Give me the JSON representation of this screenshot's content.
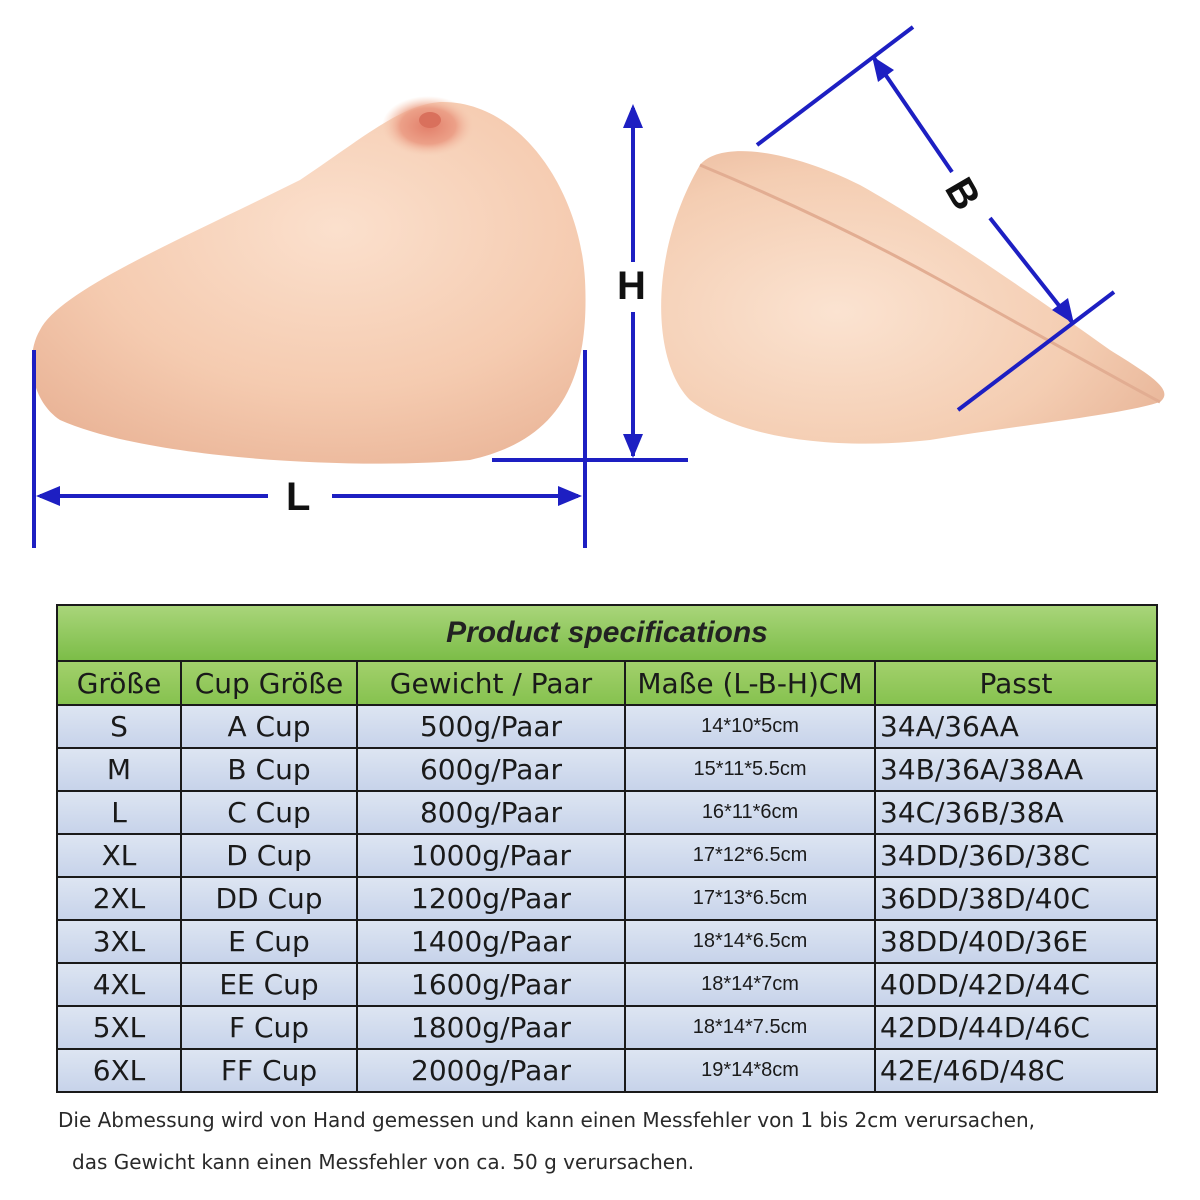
{
  "diagram": {
    "length_label": "L",
    "height_label": "H",
    "width_label": "B",
    "skin_color": "#f4c9ad",
    "nipple_color": "#e58f79",
    "dimension_line_color": "#1d1fc2"
  },
  "table": {
    "title": "Product specifications",
    "columns": [
      "Größe",
      "Cup Größe",
      "Gewicht / Paar",
      "Maße (L-B-H)CM",
      "Passt"
    ],
    "rows": [
      [
        "S",
        "A Cup",
        "500g/Paar",
        "14*10*5cm",
        "34A/36AA"
      ],
      [
        "M",
        "B Cup",
        "600g/Paar",
        "15*11*5.5cm",
        "34B/36A/38AA"
      ],
      [
        "L",
        "C Cup",
        "800g/Paar",
        "16*11*6cm",
        "34C/36B/38A"
      ],
      [
        "XL",
        "D Cup",
        "1000g/Paar",
        "17*12*6.5cm",
        "34DD/36D/38C"
      ],
      [
        "2XL",
        "DD Cup",
        "1200g/Paar",
        "17*13*6.5cm",
        "36DD/38D/40C"
      ],
      [
        "3XL",
        "E Cup",
        "1400g/Paar",
        "18*14*6.5cm",
        "38DD/40D/36E"
      ],
      [
        "4XL",
        "EE Cup",
        "1600g/Paar",
        "18*14*7cm",
        "40DD/42D/44C"
      ],
      [
        "5XL",
        "F Cup",
        "1800g/Paar",
        "18*14*7.5cm",
        "42DD/44D/46C"
      ],
      [
        "6XL",
        "FF Cup",
        "2000g/Paar",
        "19*14*8cm",
        "42E/46D/48C"
      ]
    ],
    "header_color": "#86c24f",
    "row_color": "#d3dcee"
  },
  "notes": {
    "line1": "Die Abmessung wird von Hand gemessen und kann einen Messfehler von 1 bis 2cm verursachen,",
    "line2": "das Gewicht kann einen Messfehler von ca. 50 g verursachen."
  }
}
